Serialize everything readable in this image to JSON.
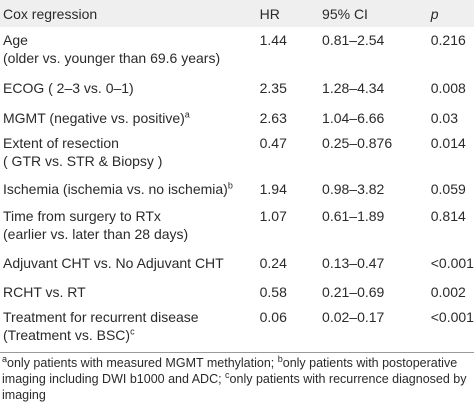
{
  "table": {
    "headers": {
      "variable": "Cox regression",
      "hr": "HR",
      "ci": "95% CI",
      "p": "p"
    },
    "rows": [
      {
        "line1": "Age",
        "line2": "(older vs. younger than 69.6 years)",
        "sup": "",
        "hr": "1.44",
        "ci": "0.81–2.54",
        "p": "0.216"
      },
      {
        "line1": "ECOG ( 2–3 vs. 0–1)",
        "line2": "",
        "sup": "",
        "hr": "2.35",
        "ci": "1.28–4.34",
        "p": "0.008"
      },
      {
        "line1": "MGMT (negative vs. positive)",
        "line2": "",
        "sup": "a",
        "hr": "2.63",
        "ci": "1.04–6.66",
        "p": "0.03"
      },
      {
        "line1": "Extent of resection",
        "line2": "( GTR vs. STR & Biopsy )",
        "sup": "",
        "hr": "0.47",
        "ci": "0.25–0.876",
        "p": "0.014"
      },
      {
        "line1": "Ischemia (ischemia vs. no ischemia)",
        "line2": "",
        "sup": "b",
        "hr": "1.94",
        "ci": "0.98–3.82",
        "p": "0.059"
      },
      {
        "line1": "Time from surgery to RTx",
        "line2": "(earlier vs. later than 28 days)",
        "sup": "",
        "hr": "1.07",
        "ci": "0.61–1.89",
        "p": "0.814"
      },
      {
        "line1": "Adjuvant CHT vs. No Adjuvant CHT",
        "line2": "",
        "sup": "",
        "hr": "0.24",
        "ci": "0.13–0.47",
        "p": "<0.001"
      },
      {
        "line1": "RCHT vs. RT",
        "line2": "",
        "sup": "",
        "hr": "0.58",
        "ci": "0.21–0.69",
        "p": "0.002"
      },
      {
        "line1": "Treatment for recurrent disease",
        "line2": "(Treatment vs. BSC)",
        "sup": "c",
        "hr": "0.06",
        "ci": "0.02–0.17",
        "p": "<0.001"
      }
    ]
  },
  "footnotes": {
    "a_mark": "a",
    "a_text": "only patients with measured MGMT methylation; ",
    "b_mark": "b",
    "b_text": "only patients with postoperative imaging including DWI b1000 and ADC; ",
    "c_mark": "c",
    "c_text": "only patients with recurrence diagnosed by imaging"
  }
}
